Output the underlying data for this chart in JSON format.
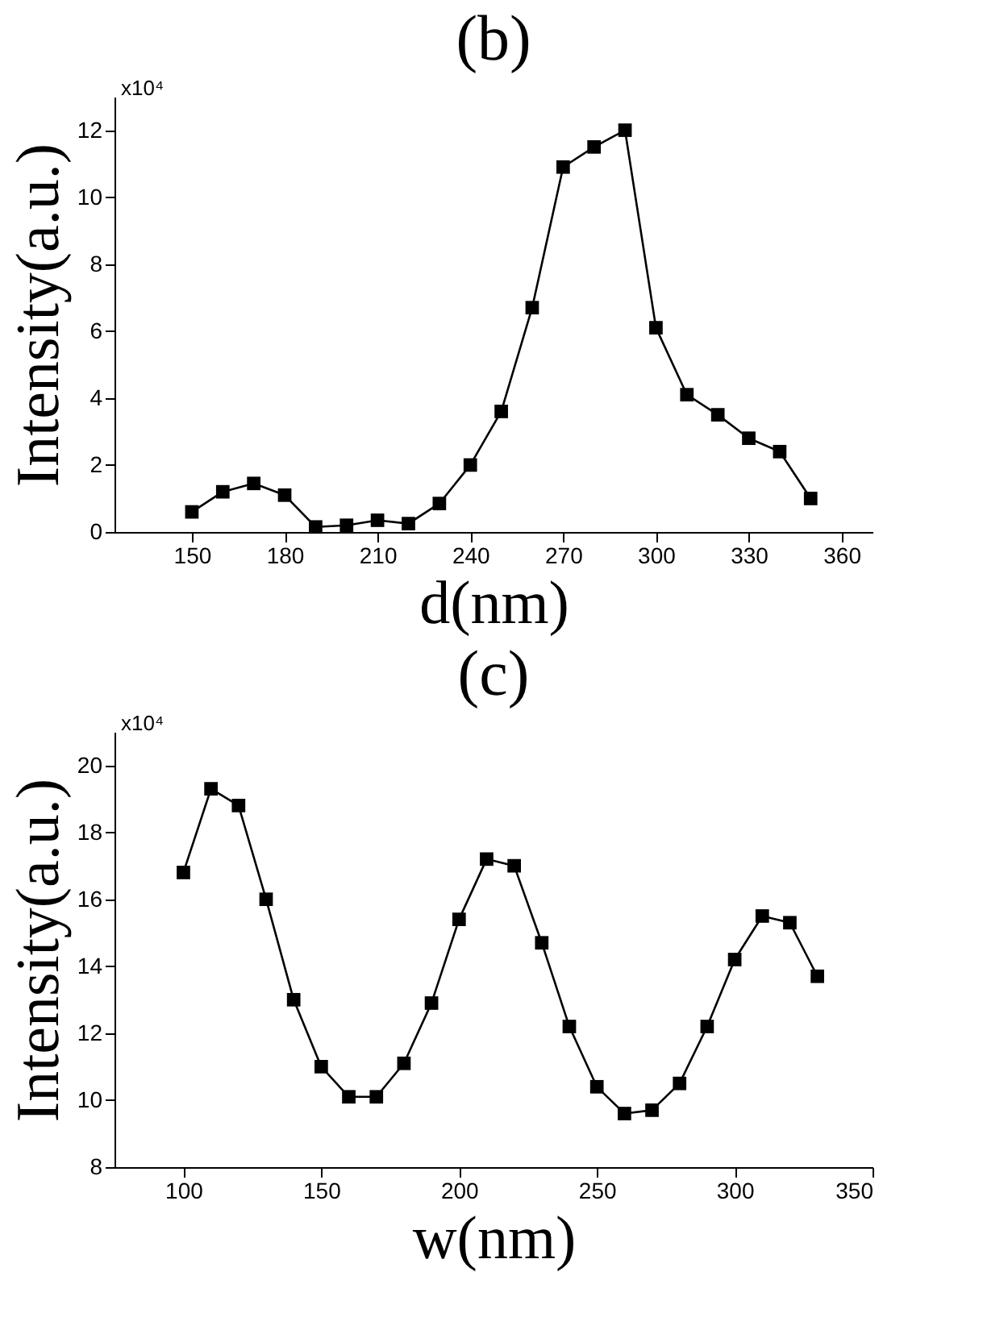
{
  "chart_data": [
    {
      "type": "line",
      "title": "(b)",
      "xlabel": "d(nm)",
      "ylabel": "Intensity(a.u.)",
      "annotations": [
        "x10⁴"
      ],
      "x": [
        150,
        160,
        170,
        180,
        190,
        200,
        210,
        220,
        230,
        240,
        250,
        260,
        270,
        280,
        290,
        300,
        310,
        320,
        330,
        340,
        350
      ],
      "series": [
        {
          "color": "#000000",
          "values": [
            0.6,
            1.2,
            1.45,
            1.1,
            0.15,
            0.2,
            0.35,
            0.25,
            0.85,
            2.0,
            3.6,
            6.7,
            10.9,
            11.5,
            12.0,
            6.1,
            4.1,
            3.5,
            2.8,
            2.4,
            1.0
          ]
        }
      ],
      "xlim": [
        125,
        370
      ],
      "xticks": [
        150,
        180,
        210,
        240,
        270,
        300,
        330,
        360
      ],
      "ylim": [
        0,
        13
      ],
      "yticks": [
        0,
        2,
        4,
        6,
        8,
        10,
        12
      ],
      "marker": "square",
      "line_style": "solid",
      "grid": false
    },
    {
      "type": "line",
      "title": "(c)",
      "xlabel": "w(nm)",
      "ylabel": "Intensity(a.u.)",
      "annotations": [
        "x10⁴"
      ],
      "x": [
        100,
        110,
        120,
        130,
        140,
        150,
        160,
        170,
        180,
        190,
        200,
        210,
        220,
        230,
        240,
        250,
        260,
        270,
        280,
        290,
        300,
        310,
        320,
        330
      ],
      "series": [
        {
          "color": "#000000",
          "values": [
            16.8,
            19.3,
            18.8,
            16.0,
            13.0,
            11.0,
            10.1,
            10.1,
            11.1,
            12.9,
            15.4,
            17.2,
            17.0,
            14.7,
            12.2,
            10.4,
            9.6,
            9.7,
            10.5,
            12.2,
            14.2,
            15.5,
            15.3,
            13.7
          ]
        }
      ],
      "xlim": [
        75,
        350
      ],
      "xticks": [
        100,
        150,
        200,
        250,
        300,
        350
      ],
      "ylim": [
        8,
        21
      ],
      "yticks": [
        8,
        10,
        12,
        14,
        16,
        18,
        20
      ],
      "marker": "square",
      "line_style": "solid",
      "grid": false
    }
  ]
}
